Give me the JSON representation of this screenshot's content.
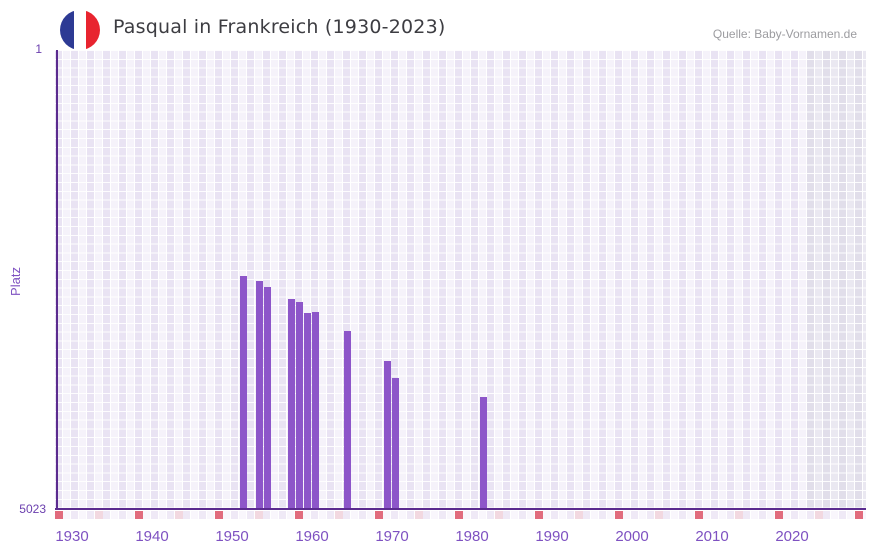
{
  "header": {
    "flag_icon_label": "france-flag-icon",
    "flag_colors": {
      "blue": "#2d3a94",
      "white": "#ffffff",
      "red": "#e8242f"
    },
    "title": "Pasqual in Frankreich (1930-2023)",
    "source": "Quelle: Baby-Vornamen.de"
  },
  "chart_data": {
    "type": "bar",
    "title": "Pasqual in Frankreich (1930-2023)",
    "xlabel": "",
    "ylabel": "Platz",
    "legend": "none",
    "grid": "checkered-cell-background",
    "y_axis": {
      "label_top": "1",
      "label_bottom": "5023",
      "min": 1,
      "max": 5023,
      "inverted": true,
      "scale": "linear"
    },
    "x_axis": {
      "start_year": 1930,
      "end_year": 2023,
      "grid_end_year": 2030,
      "future_start_year": 2024,
      "tick_years": [
        1930,
        1940,
        1950,
        1960,
        1970,
        1980,
        1990,
        2000,
        2010,
        2020
      ]
    },
    "decade_marks": [
      1930,
      1940,
      1950,
      1960,
      1970,
      1980,
      1990,
      2000,
      2010,
      2020,
      2030
    ],
    "half_decade_marks": [
      1935,
      1945,
      1955,
      1965,
      1975,
      1985,
      1995,
      2005,
      2015,
      2025
    ],
    "series": [
      {
        "name": "Platz",
        "points": [
          {
            "year": 1953,
            "value": 2482
          },
          {
            "year": 1955,
            "value": 2534
          },
          {
            "year": 1956,
            "value": 2599
          },
          {
            "year": 1959,
            "value": 2734
          },
          {
            "year": 1960,
            "value": 2760
          },
          {
            "year": 1961,
            "value": 2883
          },
          {
            "year": 1962,
            "value": 2872
          },
          {
            "year": 1966,
            "value": 3087
          },
          {
            "year": 1971,
            "value": 3414
          },
          {
            "year": 1972,
            "value": 3603
          },
          {
            "year": 1983,
            "value": 3811
          }
        ]
      }
    ],
    "colors": {
      "bar": "#8d56c9",
      "axis": "#5b2b8f",
      "decade_mark": "#e16b7d",
      "half_decade_mark": "#f2d8e0",
      "tick_label": "#7e51c1",
      "value_label": "#6b3fae",
      "future_band": "#e2dfe9"
    }
  }
}
